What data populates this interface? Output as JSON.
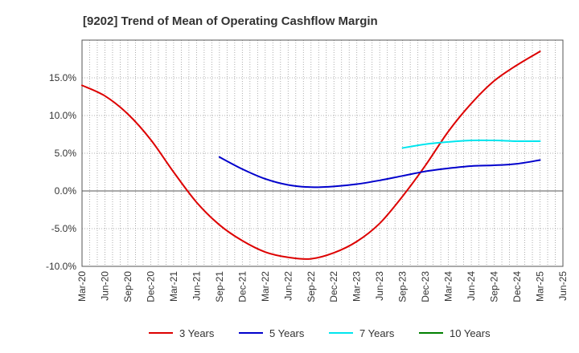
{
  "chart_data": {
    "type": "line",
    "title": "[9202]  Trend of Mean of Operating Cashflow Margin",
    "xlabel": "",
    "ylabel": "",
    "x_ticks": [
      "Mar-20",
      "Jun-20",
      "Sep-20",
      "Dec-20",
      "Mar-21",
      "Jun-21",
      "Sep-21",
      "Dec-21",
      "Mar-22",
      "Jun-22",
      "Sep-22",
      "Dec-22",
      "Mar-23",
      "Jun-23",
      "Sep-23",
      "Dec-23",
      "Mar-24",
      "Jun-24",
      "Sep-24",
      "Dec-24",
      "Mar-25",
      "Jun-25"
    ],
    "y_ticks": [
      "-10.0%",
      "-5.0%",
      "0.0%",
      "5.0%",
      "10.0%",
      "15.0%"
    ],
    "ylim": [
      -10,
      20
    ],
    "grid": true,
    "legend_position": "bottom",
    "series": [
      {
        "name": "3 Years",
        "color": "#dd0000",
        "x": [
          "Mar-20",
          "Jun-20",
          "Sep-20",
          "Dec-20",
          "Mar-21",
          "Jun-21",
          "Sep-21",
          "Dec-21",
          "Mar-22",
          "Jun-22",
          "Sep-22",
          "Dec-22",
          "Mar-23",
          "Jun-23",
          "Sep-23",
          "Dec-23",
          "Mar-24",
          "Jun-24",
          "Sep-24",
          "Dec-24",
          "Mar-25"
        ],
        "values": [
          14.0,
          12.6,
          10.2,
          6.8,
          2.5,
          -1.5,
          -4.5,
          -6.6,
          -8.1,
          -8.8,
          -9.0,
          -8.2,
          -6.7,
          -4.3,
          -0.7,
          3.4,
          7.9,
          11.6,
          14.6,
          16.7,
          18.5
        ]
      },
      {
        "name": "5 Years",
        "color": "#0000cc",
        "x": [
          "Sep-21",
          "Dec-21",
          "Mar-22",
          "Jun-22",
          "Sep-22",
          "Dec-22",
          "Mar-23",
          "Jun-23",
          "Sep-23",
          "Dec-23",
          "Mar-24",
          "Jun-24",
          "Sep-24",
          "Dec-24",
          "Mar-25"
        ],
        "values": [
          4.5,
          2.9,
          1.6,
          0.8,
          0.5,
          0.6,
          0.9,
          1.4,
          2.0,
          2.6,
          3.0,
          3.3,
          3.4,
          3.6,
          4.1
        ]
      },
      {
        "name": "7 Years",
        "color": "#00e5ee",
        "x": [
          "Sep-23",
          "Dec-23",
          "Mar-24",
          "Jun-24",
          "Sep-24",
          "Dec-24",
          "Mar-25"
        ],
        "values": [
          5.7,
          6.2,
          6.5,
          6.7,
          6.7,
          6.6,
          6.6
        ]
      },
      {
        "name": "10 Years",
        "color": "#008000",
        "x": [],
        "values": []
      }
    ]
  }
}
